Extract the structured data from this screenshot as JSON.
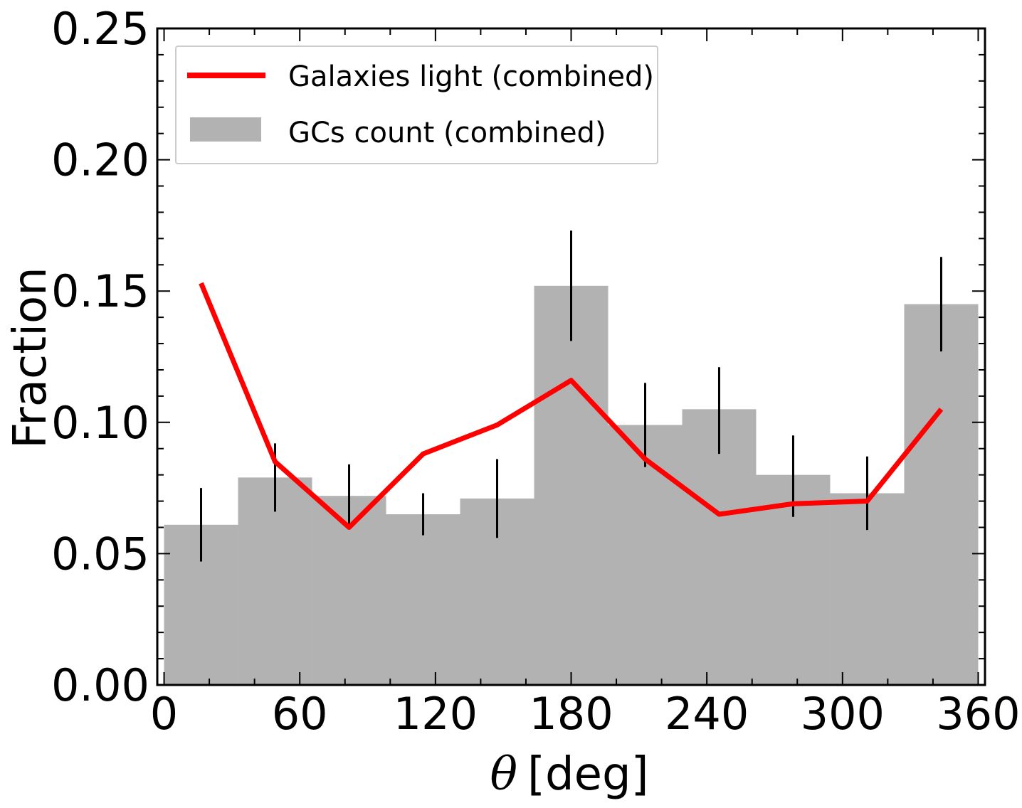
{
  "chart_data": {
    "type": "bar",
    "title": "",
    "xlabel": "θ [deg]",
    "xlabel_symbol": "θ",
    "xlabel_unit": "[deg]",
    "ylabel": "Fraction",
    "xlim": [
      -3,
      363
    ],
    "ylim": [
      0,
      0.25
    ],
    "xticks": [
      0,
      60,
      120,
      180,
      240,
      300,
      360
    ],
    "xtick_labels": [
      "0",
      "60",
      "120",
      "180",
      "240",
      "300",
      "360"
    ],
    "yticks": [
      0.0,
      0.05,
      0.1,
      0.15,
      0.2,
      0.25
    ],
    "ytick_labels": [
      "0.00",
      "0.05",
      "0.10",
      "0.15",
      "0.20",
      "0.25"
    ],
    "grid": false,
    "legend_position": "top-left",
    "histogram": {
      "name": "GCs count (combined)",
      "color": "#b2b2b2",
      "bin_edges": [
        0,
        32.727,
        65.455,
        98.182,
        130.909,
        163.636,
        196.364,
        229.091,
        261.818,
        294.545,
        327.273,
        360
      ],
      "bin_centers": [
        16.36,
        49.09,
        81.82,
        114.55,
        147.27,
        180.0,
        212.73,
        245.45,
        278.18,
        310.91,
        343.64
      ],
      "values": [
        0.061,
        0.079,
        0.072,
        0.065,
        0.071,
        0.152,
        0.099,
        0.105,
        0.08,
        0.073,
        0.145
      ],
      "err_low": [
        0.047,
        0.066,
        0.061,
        0.057,
        0.056,
        0.131,
        0.083,
        0.088,
        0.064,
        0.059,
        0.127
      ],
      "err_high": [
        0.075,
        0.092,
        0.084,
        0.073,
        0.086,
        0.173,
        0.115,
        0.121,
        0.095,
        0.087,
        0.163
      ]
    },
    "line": {
      "name": "Galaxies light (combined)",
      "color": "#ff0000",
      "x": [
        16.36,
        49.09,
        81.82,
        114.55,
        147.27,
        180.0,
        212.73,
        245.45,
        278.18,
        310.91,
        343.64
      ],
      "y": [
        0.153,
        0.085,
        0.06,
        0.088,
        0.099,
        0.116,
        0.086,
        0.065,
        0.069,
        0.07,
        0.105
      ]
    }
  }
}
